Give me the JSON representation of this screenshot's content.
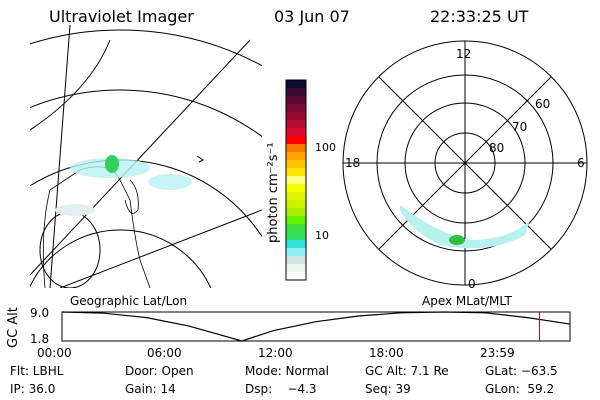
{
  "header": {
    "instrument": "Ultraviolet Imager",
    "date": "03 Jun 07",
    "time": "22:33:25 UT"
  },
  "colorbar": {
    "label": "photon cm⁻²s⁻¹",
    "ticks": [
      "100",
      "10"
    ],
    "colors": [
      "#0c0c30",
      "#3a0c34",
      "#5a0a34",
      "#7c0a34",
      "#980a30",
      "#b40a30",
      "#d80a30",
      "#ff0000",
      "#ff7800",
      "#ffa400",
      "#ffc400",
      "#ffe400",
      "#ffff80",
      "#f4ff00",
      "#e4f400",
      "#c8f400",
      "#a8f000",
      "#60f000",
      "#40e040",
      "#30e060",
      "#30e0d8",
      "#90f0f4",
      "#d0e4e4",
      "#e8f4ee",
      "#ffffff"
    ]
  },
  "polar": {
    "labels": {
      "top": "12",
      "left": "18",
      "right": "6",
      "bottom": "0",
      "lat60": "60",
      "lat70": "70",
      "lat80": "80"
    }
  },
  "altitude_plot": {
    "left_label": "Geographic Lat/Lon",
    "right_label": "Apex MLat/MLT",
    "ylabel": "GC Alt",
    "yticks": [
      "9.0",
      "1.8"
    ],
    "xticks": [
      "00:00",
      "06:00",
      "12:00",
      "18:00",
      "23:59"
    ],
    "hours": [
      0,
      2,
      4,
      6,
      8.5,
      10,
      12,
      14,
      16,
      18,
      20,
      22,
      24
    ],
    "alt": [
      9.0,
      8.7,
      7.6,
      5.5,
      1.8,
      4.4,
      6.6,
      8.0,
      8.8,
      9.0,
      8.8,
      7.6,
      6.0
    ],
    "current_time_hour": 22.56,
    "marker_color": "#e00000"
  },
  "status": {
    "filter": "Flt: LBHL",
    "door": "Door: Open",
    "mode": "Mode: Normal",
    "gc_alt": "GC Alt: 7.1 Re",
    "glat": "GLat: −63.5",
    "ip": "IP: 36.0",
    "gain": "Gain: 14",
    "dsp": "Dsp:    −4.3",
    "seq": "Seq: 39",
    "glon": "GLon:  59.2"
  }
}
